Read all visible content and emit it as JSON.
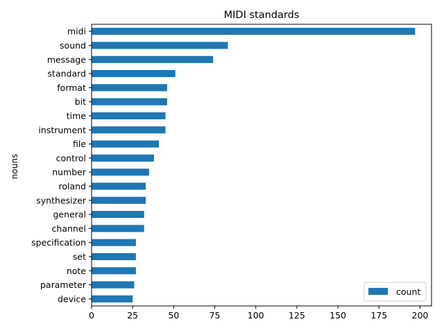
{
  "chart_data": {
    "type": "bar",
    "orientation": "horizontal",
    "title": "MIDI standards",
    "xlabel": "",
    "ylabel": "nouns",
    "categories": [
      "midi",
      "sound",
      "message",
      "standard",
      "format",
      "bit",
      "time",
      "instrument",
      "file",
      "control",
      "number",
      "roland",
      "synthesizer",
      "general",
      "channel",
      "specification",
      "set",
      "note",
      "parameter",
      "device"
    ],
    "series": [
      {
        "name": "count",
        "color": "#1f77b4",
        "values": [
          197,
          83,
          74,
          51,
          46,
          46,
          45,
          45,
          41,
          38,
          35,
          33,
          33,
          32,
          32,
          27,
          27,
          27,
          26,
          25
        ]
      }
    ],
    "xlim": [
      0,
      207
    ],
    "xticks": [
      0,
      25,
      50,
      75,
      100,
      125,
      150,
      175,
      200
    ],
    "grid": false,
    "legend_position": "lower-right"
  }
}
